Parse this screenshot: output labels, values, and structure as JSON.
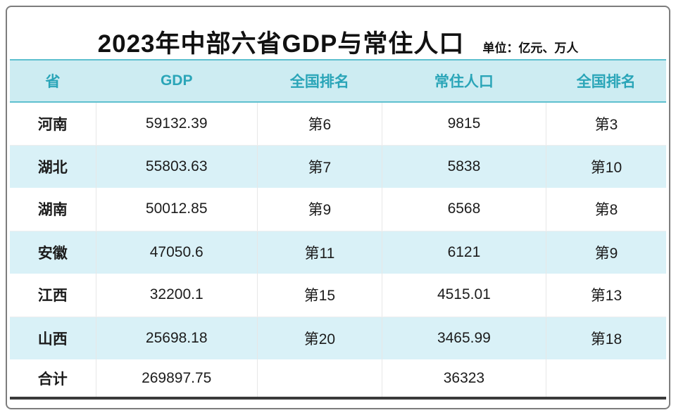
{
  "title": "2023年中部六省GDP与常住人口",
  "unit_label": "单位：亿元、万人",
  "colors": {
    "header_bg": "#cdecf2",
    "header_text": "#2aa5b8",
    "header_border": "#5ec0cf",
    "row_alt_bg": "#d9f1f7",
    "table_bottom_border": "#3a3a3a",
    "card_border": "#7d7d7d",
    "body_text": "#1c1c1c"
  },
  "table": {
    "headers": [
      "省",
      "GDP",
      "全国排名",
      "常住人口",
      "全国排名"
    ],
    "rows": [
      [
        "河南",
        "59132.39",
        "第6",
        "9815",
        "第3"
      ],
      [
        "湖北",
        "55803.63",
        "第7",
        "5838",
        "第10"
      ],
      [
        "湖南",
        "50012.85",
        "第9",
        "6568",
        "第8"
      ],
      [
        "安徽",
        "47050.6",
        "第11",
        "6121",
        "第9"
      ],
      [
        "江西",
        "32200.1",
        "第15",
        "4515.01",
        "第13"
      ],
      [
        "山西",
        "25698.18",
        "第20",
        "3465.99",
        "第18"
      ],
      [
        "合计",
        "269897.75",
        "",
        "36323",
        ""
      ]
    ]
  },
  "chart_data": {
    "type": "table",
    "title": "2023年中部六省GDP与常住人口",
    "unit": "亿元、万人",
    "columns": [
      "省",
      "GDP",
      "全国排名",
      "常住人口",
      "全国排名"
    ],
    "rows": [
      {
        "province": "河南",
        "gdp": 59132.39,
        "gdp_rank": 6,
        "population": 9815,
        "population_rank": 3
      },
      {
        "province": "湖北",
        "gdp": 55803.63,
        "gdp_rank": 7,
        "population": 5838,
        "population_rank": 10
      },
      {
        "province": "湖南",
        "gdp": 50012.85,
        "gdp_rank": 9,
        "population": 6568,
        "population_rank": 8
      },
      {
        "province": "安徽",
        "gdp": 47050.6,
        "gdp_rank": 11,
        "population": 6121,
        "population_rank": 9
      },
      {
        "province": "江西",
        "gdp": 32200.1,
        "gdp_rank": 15,
        "population": 4515.01,
        "population_rank": 13
      },
      {
        "province": "山西",
        "gdp": 25698.18,
        "gdp_rank": 20,
        "population": 3465.99,
        "population_rank": 18
      }
    ],
    "totals": {
      "label": "合计",
      "gdp": 269897.75,
      "population": 36323
    }
  }
}
